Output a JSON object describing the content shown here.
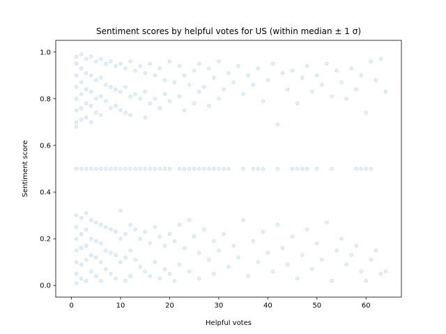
{
  "chart_data": {
    "type": "scatter",
    "title": "Sentiment scores by helpful votes for US (within median ± 1 σ)",
    "xlabel": "Helpful votes",
    "ylabel": "Sentiment score",
    "xlim": [
      -3.2,
      67.2
    ],
    "ylim": [
      -0.05,
      1.05
    ],
    "xticks": [
      0,
      10,
      20,
      30,
      40,
      50,
      60
    ],
    "yticks": [
      0.0,
      0.2,
      0.4,
      0.6,
      0.8,
      1.0
    ],
    "xtick_labels": [
      "0",
      "10",
      "20",
      "30",
      "40",
      "50",
      "60"
    ],
    "ytick_labels": [
      "0.0",
      "0.2",
      "0.4",
      "0.6",
      "0.8",
      "1.0"
    ],
    "grid": false,
    "legend": "none",
    "colors": {
      "marker": "#1f77b4",
      "axes": "#000000",
      "background": "#ffffff"
    },
    "marker_opacity": 0.12,
    "neutral_value": 0.5,
    "neutral_x": [
      1,
      2,
      3,
      4,
      5,
      6,
      7,
      8,
      9,
      10,
      11,
      12,
      13,
      14,
      15,
      16,
      17,
      18,
      19,
      20,
      22,
      23,
      24,
      25,
      26,
      27,
      28,
      29,
      30,
      31,
      32,
      35,
      37,
      38,
      39,
      42,
      45,
      46,
      47,
      48,
      50,
      53,
      58,
      59,
      60,
      61
    ],
    "series": [
      {
        "points": [
          [
            1,
            0.98
          ],
          [
            1,
            0.95
          ],
          [
            1,
            0.9
          ],
          [
            1,
            0.85
          ],
          [
            1,
            0.8
          ],
          [
            1,
            0.75
          ],
          [
            1,
            0.7
          ],
          [
            1,
            0.68
          ],
          [
            1,
            0.3
          ],
          [
            1,
            0.25
          ],
          [
            1,
            0.2
          ],
          [
            1,
            0.15
          ],
          [
            1,
            0.1
          ],
          [
            1,
            0.05
          ],
          [
            1,
            0.01
          ],
          [
            2,
            0.99
          ],
          [
            2,
            0.93
          ],
          [
            2,
            0.87
          ],
          [
            2,
            0.82
          ],
          [
            2,
            0.76
          ],
          [
            2,
            0.71
          ],
          [
            2,
            0.29
          ],
          [
            2,
            0.22
          ],
          [
            2,
            0.16
          ],
          [
            2,
            0.09
          ],
          [
            2,
            0.03
          ],
          [
            3,
            0.97
          ],
          [
            3,
            0.91
          ],
          [
            3,
            0.84
          ],
          [
            3,
            0.78
          ],
          [
            3,
            0.72
          ],
          [
            3,
            0.31
          ],
          [
            3,
            0.24
          ],
          [
            3,
            0.17
          ],
          [
            3,
            0.11
          ],
          [
            3,
            0.02
          ],
          [
            4,
            0.98
          ],
          [
            4,
            0.9
          ],
          [
            4,
            0.83
          ],
          [
            4,
            0.77
          ],
          [
            4,
            0.7
          ],
          [
            4,
            0.28
          ],
          [
            4,
            0.2
          ],
          [
            4,
            0.13
          ],
          [
            4,
            0.06
          ],
          [
            5,
            0.96
          ],
          [
            5,
            0.88
          ],
          [
            5,
            0.8
          ],
          [
            5,
            0.74
          ],
          [
            5,
            0.27
          ],
          [
            5,
            0.19
          ],
          [
            5,
            0.12
          ],
          [
            5,
            0.04
          ],
          [
            6,
            0.97
          ],
          [
            6,
            0.89
          ],
          [
            6,
            0.81
          ],
          [
            6,
            0.73
          ],
          [
            6,
            0.26
          ],
          [
            6,
            0.18
          ],
          [
            6,
            0.1
          ],
          [
            6,
            0.02
          ],
          [
            7,
            0.95
          ],
          [
            7,
            0.86
          ],
          [
            7,
            0.79
          ],
          [
            7,
            0.25
          ],
          [
            7,
            0.15
          ],
          [
            7,
            0.07
          ],
          [
            8,
            0.96
          ],
          [
            8,
            0.85
          ],
          [
            8,
            0.76
          ],
          [
            8,
            0.24
          ],
          [
            8,
            0.14
          ],
          [
            8,
            0.05
          ],
          [
            9,
            0.94
          ],
          [
            9,
            0.84
          ],
          [
            9,
            0.77
          ],
          [
            9,
            0.23
          ],
          [
            9,
            0.13
          ],
          [
            9,
            0.03
          ],
          [
            10,
            0.95
          ],
          [
            10,
            0.83
          ],
          [
            10,
            0.75
          ],
          [
            10,
            0.32
          ],
          [
            10,
            0.2
          ],
          [
            10,
            0.1
          ],
          [
            11,
            0.93
          ],
          [
            11,
            0.85
          ],
          [
            11,
            0.74
          ],
          [
            11,
            0.22
          ],
          [
            11,
            0.12
          ],
          [
            11,
            0.02
          ],
          [
            12,
            0.96
          ],
          [
            12,
            0.81
          ],
          [
            12,
            0.73
          ],
          [
            12,
            0.26
          ],
          [
            12,
            0.15
          ],
          [
            12,
            0.04
          ],
          [
            13,
            0.92
          ],
          [
            13,
            0.82
          ],
          [
            13,
            0.24
          ],
          [
            13,
            0.11
          ],
          [
            14,
            0.94
          ],
          [
            14,
            0.8
          ],
          [
            14,
            0.2
          ],
          [
            14,
            0.08
          ],
          [
            15,
            0.91
          ],
          [
            15,
            0.83
          ],
          [
            15,
            0.72
          ],
          [
            15,
            0.23
          ],
          [
            15,
            0.06
          ],
          [
            16,
            0.95
          ],
          [
            16,
            0.78
          ],
          [
            16,
            0.18
          ],
          [
            16,
            0.04
          ],
          [
            17,
            0.9
          ],
          [
            17,
            0.8
          ],
          [
            17,
            0.25
          ],
          [
            17,
            0.1
          ],
          [
            18,
            0.93
          ],
          [
            18,
            0.76
          ],
          [
            18,
            0.21
          ],
          [
            18,
            0.03
          ],
          [
            19,
            0.88
          ],
          [
            19,
            0.82
          ],
          [
            19,
            0.17
          ],
          [
            19,
            0.07
          ],
          [
            20,
            0.96
          ],
          [
            20,
            0.79
          ],
          [
            20,
            0.22
          ],
          [
            20,
            0.05
          ],
          [
            21,
            0.87
          ],
          [
            21,
            0.19
          ],
          [
            21,
            0.02
          ],
          [
            22,
            0.94
          ],
          [
            22,
            0.81
          ],
          [
            22,
            0.26
          ],
          [
            22,
            0.09
          ],
          [
            23,
            0.9
          ],
          [
            23,
            0.75
          ],
          [
            23,
            0.16
          ],
          [
            24,
            0.86
          ],
          [
            24,
            0.28
          ],
          [
            24,
            0.06
          ],
          [
            25,
            0.92
          ],
          [
            25,
            0.78
          ],
          [
            25,
            0.21
          ],
          [
            26,
            0.95
          ],
          [
            26,
            0.83
          ],
          [
            26,
            0.14
          ],
          [
            26,
            0.03
          ],
          [
            27,
            0.85
          ],
          [
            27,
            0.24
          ],
          [
            28,
            0.93
          ],
          [
            28,
            0.77
          ],
          [
            28,
            0.11
          ],
          [
            29,
            0.89
          ],
          [
            29,
            0.19
          ],
          [
            29,
            0.05
          ],
          [
            30,
            0.96
          ],
          [
            30,
            0.8
          ],
          [
            30,
            0.15
          ],
          [
            31,
            0.84
          ],
          [
            31,
            0.22
          ],
          [
            32,
            0.91
          ],
          [
            32,
            0.08
          ],
          [
            33,
            0.87
          ],
          [
            33,
            0.17
          ],
          [
            34,
            0.94
          ],
          [
            34,
            0.12
          ],
          [
            35,
            0.82
          ],
          [
            35,
            0.28
          ],
          [
            36,
            0.9
          ],
          [
            36,
            0.04
          ],
          [
            37,
            0.86
          ],
          [
            37,
            0.19
          ],
          [
            38,
            0.93
          ],
          [
            38,
            0.1
          ],
          [
            39,
            0.79
          ],
          [
            39,
            0.23
          ],
          [
            40,
            0.88
          ],
          [
            40,
            0.14
          ],
          [
            41,
            0.95
          ],
          [
            41,
            0.06
          ],
          [
            42,
            0.69
          ],
          [
            42,
            0.26
          ],
          [
            43,
            0.91
          ],
          [
            43,
            0.16
          ],
          [
            44,
            0.84
          ],
          [
            44,
            0.09
          ],
          [
            45,
            0.92
          ],
          [
            45,
            0.21
          ],
          [
            46,
            0.78
          ],
          [
            46,
            0.03
          ],
          [
            47,
            0.89
          ],
          [
            47,
            0.13
          ],
          [
            48,
            0.94
          ],
          [
            48,
            0.24
          ],
          [
            49,
            0.83
          ],
          [
            49,
            0.07
          ],
          [
            50,
            0.9
          ],
          [
            50,
            0.18
          ],
          [
            51,
            0.86
          ],
          [
            51,
            0.11
          ],
          [
            52,
            0.95
          ],
          [
            52,
            0.27
          ],
          [
            53,
            0.81
          ],
          [
            53,
            0.02
          ],
          [
            54,
            0.92
          ],
          [
            54,
            0.15
          ],
          [
            55,
            0.87
          ],
          [
            55,
            0.2
          ],
          [
            56,
            0.8
          ],
          [
            56,
            0.09
          ],
          [
            57,
            0.93
          ],
          [
            57,
            0.13
          ],
          [
            58,
            0.84
          ],
          [
            58,
            0.17
          ],
          [
            59,
            0.9
          ],
          [
            59,
            0.06
          ],
          [
            60,
            0.74
          ],
          [
            60,
            0.02
          ],
          [
            61,
            0.96
          ],
          [
            61,
            0.11
          ],
          [
            62,
            0.88
          ],
          [
            62,
            0.15
          ],
          [
            63,
            0.97
          ],
          [
            63,
            0.05
          ],
          [
            64,
            0.83
          ],
          [
            64,
            0.06
          ]
        ]
      }
    ]
  }
}
